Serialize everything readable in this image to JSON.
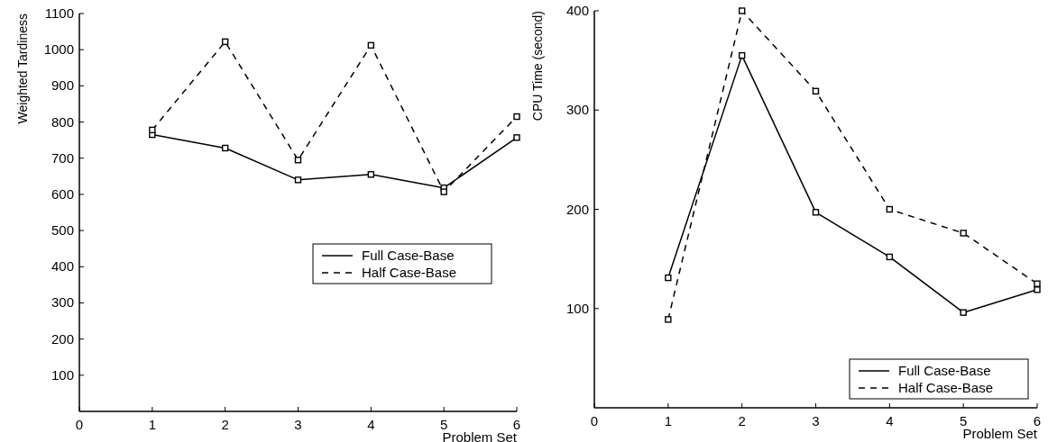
{
  "chart_data": [
    {
      "type": "line",
      "xlabel": "Problem Set",
      "ylabel": "Weighted Tardiness",
      "x": [
        1,
        2,
        3,
        4,
        5,
        6
      ],
      "xlim": [
        0,
        6
      ],
      "xticks": [
        0,
        1,
        2,
        3,
        4,
        5,
        6
      ],
      "ylim": [
        0,
        1100
      ],
      "yticks": [
        100,
        200,
        300,
        400,
        500,
        600,
        700,
        800,
        900,
        1000,
        1100
      ],
      "marker": "square",
      "legend": "right",
      "series": [
        {
          "name": "Full Case-Base",
          "color": "#000000",
          "line_style": "solid",
          "values": [
            765,
            728,
            640,
            655,
            618,
            757
          ]
        },
        {
          "name": "Half Case-Base",
          "color": "#000000",
          "line_style": "dashed",
          "values": [
            778,
            1022,
            695,
            1012,
            607,
            815
          ]
        }
      ]
    },
    {
      "type": "line",
      "xlabel": "Problem Set",
      "ylabel": "CPU Time (second)",
      "x": [
        1,
        2,
        3,
        4,
        5,
        6
      ],
      "xlim": [
        0,
        6
      ],
      "xticks": [
        0,
        1,
        2,
        3,
        4,
        5,
        6
      ],
      "ylim": [
        0,
        400
      ],
      "yticks": [
        100,
        200,
        300,
        400
      ],
      "marker": "square",
      "legend": "bottom right",
      "series": [
        {
          "name": "Full Case-Base",
          "color": "#000000",
          "line_style": "solid",
          "values": [
            131,
            355,
            197,
            152,
            96,
            119
          ]
        },
        {
          "name": "Half Case-Base",
          "color": "#000000",
          "line_style": "dashed",
          "values": [
            89,
            400,
            319,
            200,
            176,
            125
          ]
        }
      ]
    }
  ]
}
